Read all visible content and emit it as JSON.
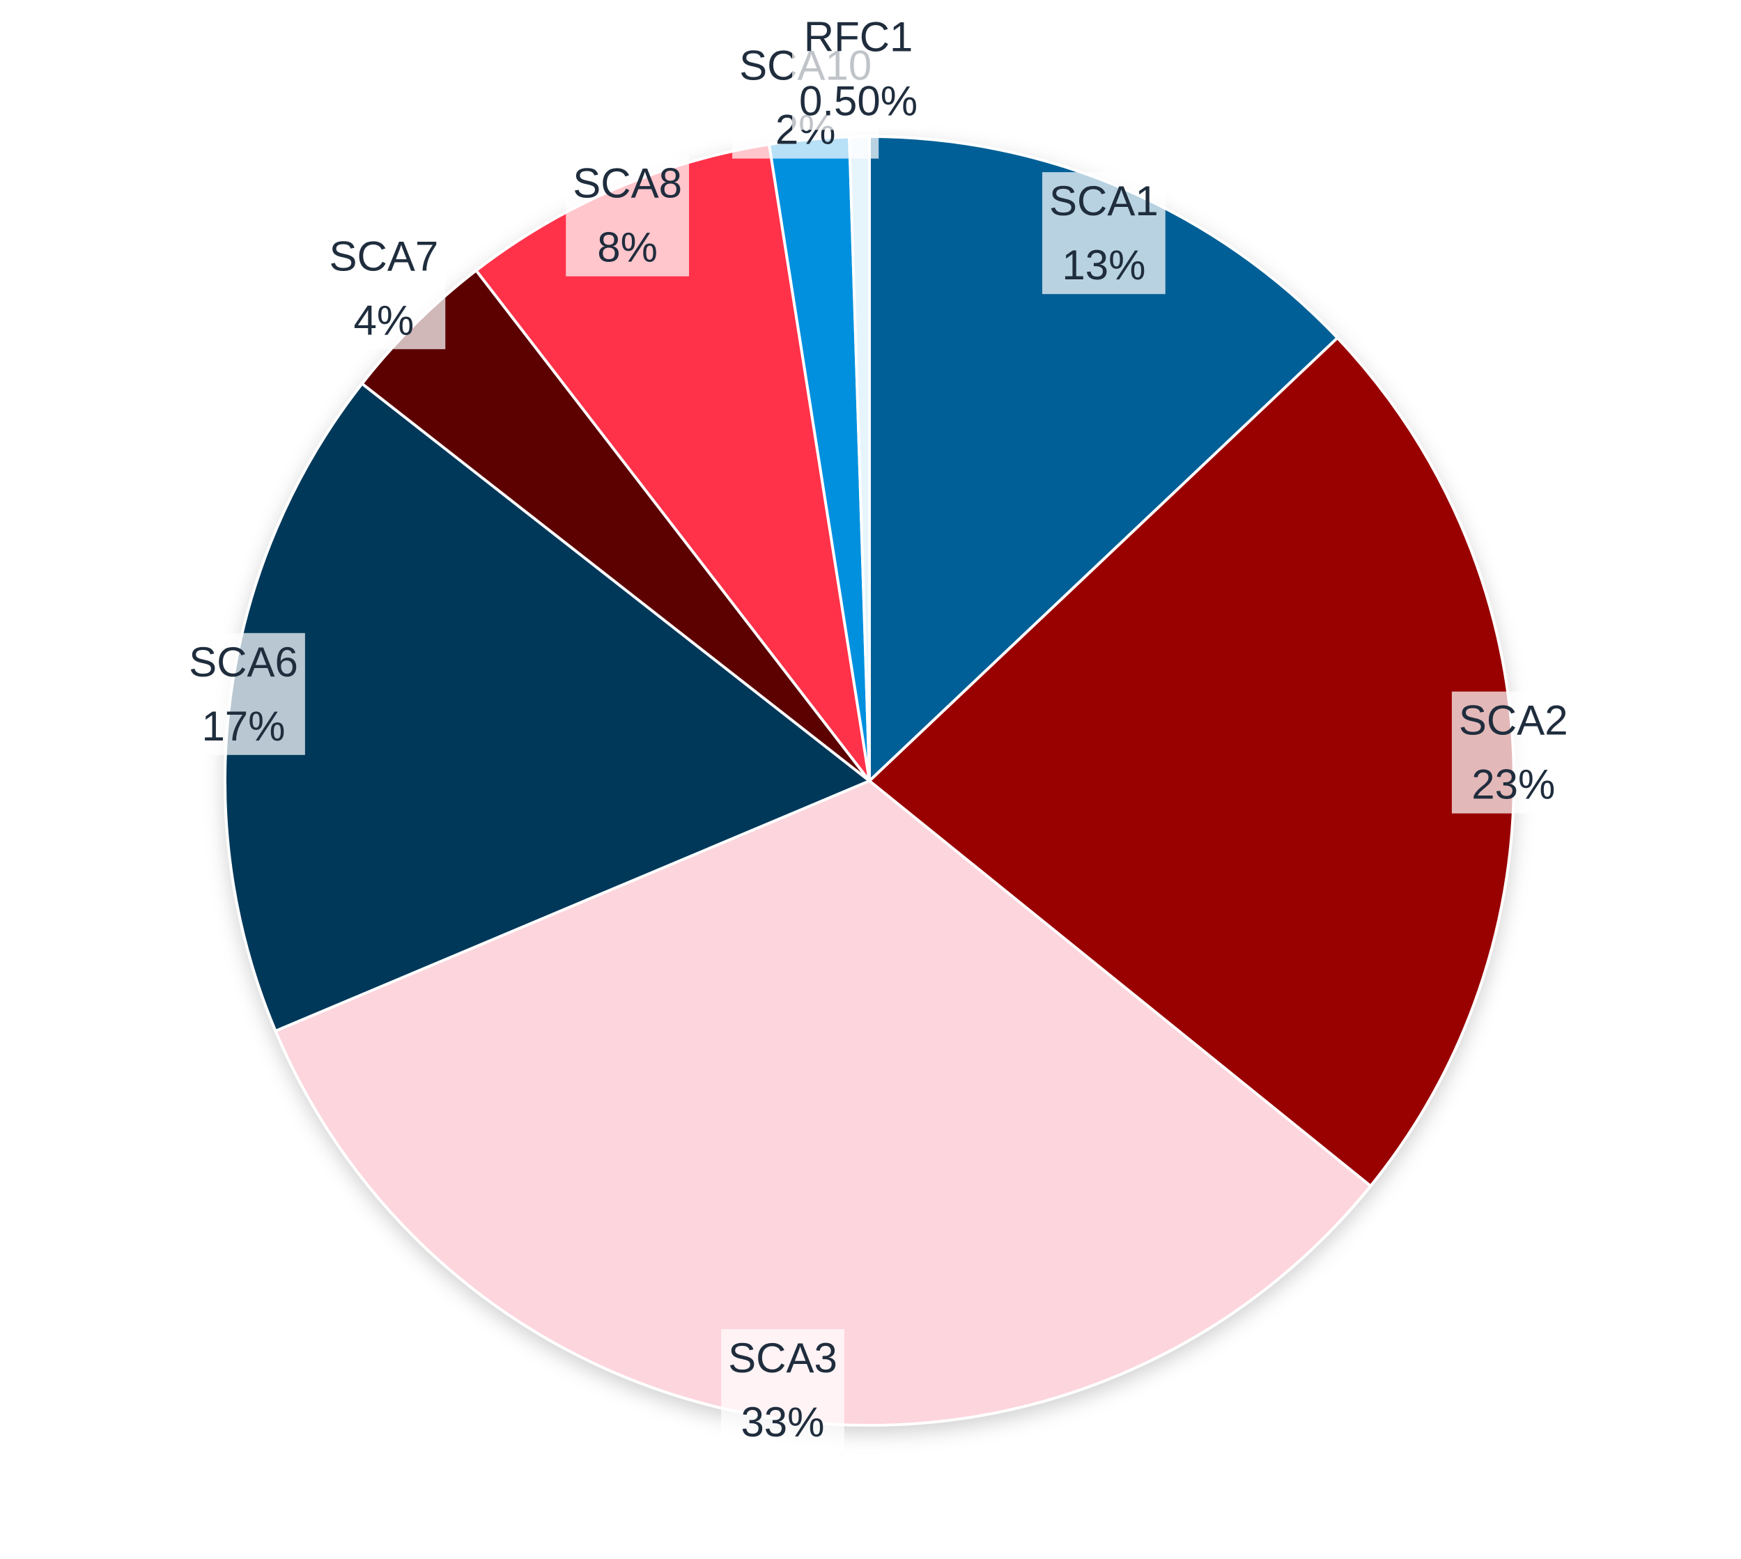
{
  "chart_data": {
    "type": "pie",
    "categories": [
      "SCA1",
      "SCA2",
      "SCA3",
      "SCA6",
      "SCA7",
      "SCA8",
      "SCA10",
      "RFC1"
    ],
    "values": [
      13,
      23,
      33,
      17,
      4,
      8,
      2,
      0.5
    ],
    "value_labels": [
      "13%",
      "23%",
      "33%",
      "17%",
      "4%",
      "8%",
      "2%",
      "0.50%"
    ],
    "colors": [
      "#005f96",
      "#990000",
      "#fdd5dc",
      "#03395a",
      "#5c0000",
      "#ff3049",
      "#0590de",
      "#e6f4fc"
    ]
  }
}
